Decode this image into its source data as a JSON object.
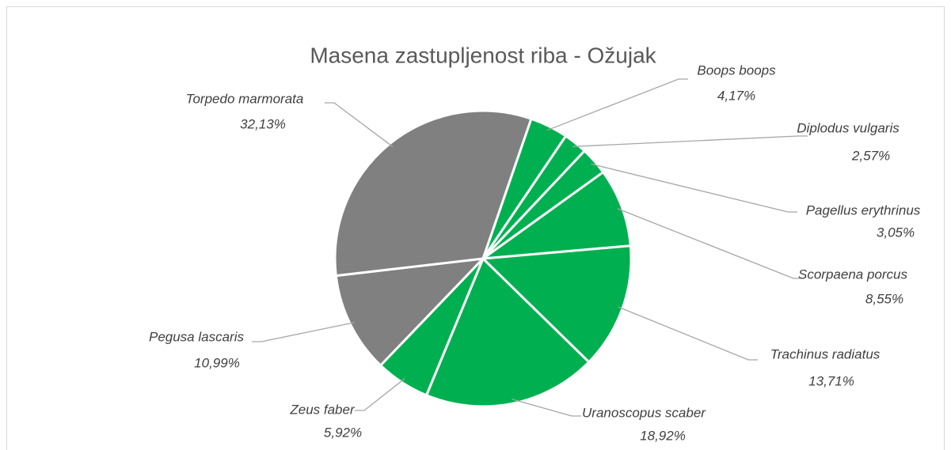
{
  "chart_data": {
    "type": "pie",
    "title": "Masena zastupljenost riba - Ožujak",
    "categories": [
      "Boops boops",
      "Diplodus vulgaris",
      "Pagellus erythrinus",
      "Scorpaena porcus",
      "Trachinus radiatus",
      "Uranoscopus scaber",
      "Zeus faber",
      "Pegusa lascaris",
      "Torpedo marmorata"
    ],
    "values": [
      4.17,
      2.57,
      3.05,
      8.55,
      13.71,
      18.92,
      5.92,
      10.99,
      32.13
    ],
    "value_labels": [
      "4,17%",
      "2,57%",
      "3,05%",
      "8,55%",
      "13,71%",
      "18,92%",
      "5,92%",
      "10,99%",
      "32,13%"
    ],
    "colors": [
      "#00b050",
      "#00b050",
      "#00b050",
      "#00b050",
      "#00b050",
      "#00b050",
      "#00b050",
      "#808080",
      "#808080"
    ]
  }
}
